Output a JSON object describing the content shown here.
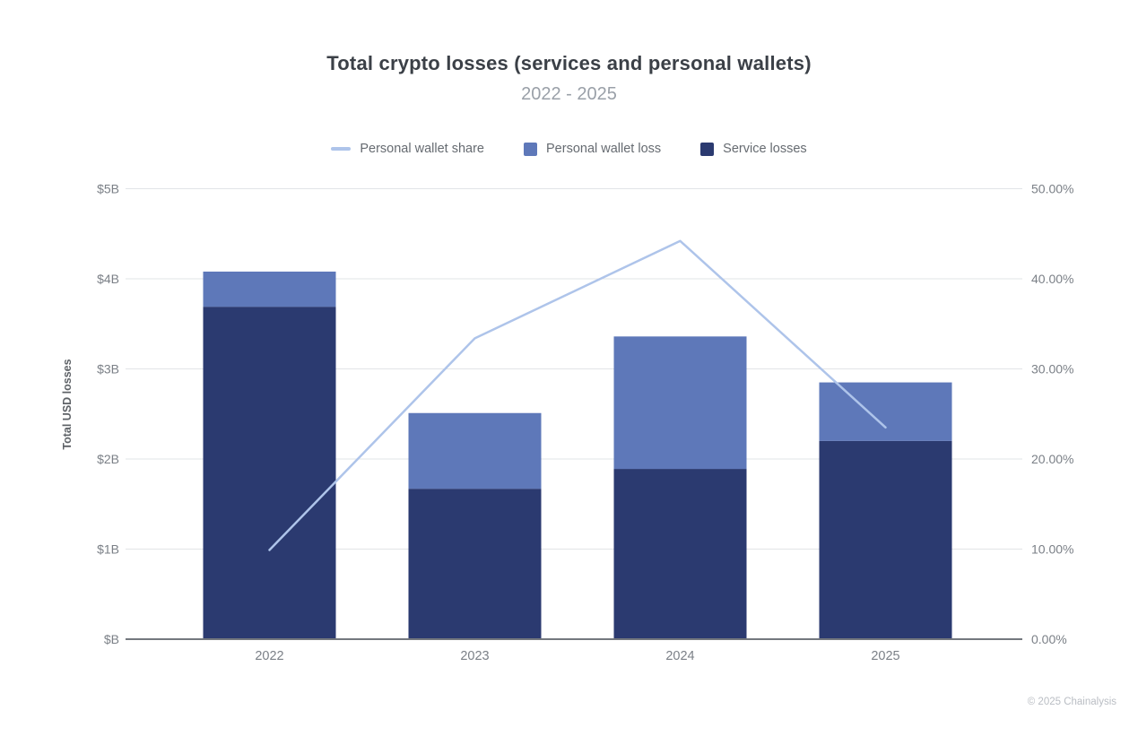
{
  "header": {
    "title": "Total crypto losses (services and personal wallets)",
    "subtitle": "2022 - 2025"
  },
  "legend": {
    "items": [
      {
        "label": "Personal wallet share",
        "marker": "line-swatch",
        "color": "#aec4ea"
      },
      {
        "label": "Personal wallet loss",
        "marker": "square-swatch",
        "color": "#5e78b9"
      },
      {
        "label": "Service losses",
        "marker": "square-swatch",
        "color": "#2b3a70"
      }
    ]
  },
  "footer": {
    "credit": "© 2025 Chainalysis"
  },
  "colors": {
    "service_bar": "#2b3a70",
    "personal_bar": "#5e78b9",
    "share_line": "#aec4ea",
    "gridline": "#e2e4e7",
    "baseline": "#74787e",
    "tick_label": "#7b8087",
    "axis_title": "#5d6166",
    "title_text": "#3b4047",
    "subtitle_text": "#9aa0a8",
    "footer_text": "#b9bdc3"
  },
  "chart_data": {
    "type": "bar",
    "subtype": "stacked-bars-with-line-overlay",
    "title": "Total crypto losses (services and personal wallets)",
    "subtitle": "2022 - 2025",
    "categories": [
      "2022",
      "2023",
      "2024",
      "2025"
    ],
    "series": [
      {
        "name": "Service losses",
        "type": "bar",
        "stack": "losses",
        "axis": "left",
        "color": "#2b3a70",
        "values": [
          3.69,
          1.67,
          1.89,
          2.2
        ]
      },
      {
        "name": "Personal wallet loss",
        "type": "bar",
        "stack": "losses",
        "axis": "left",
        "color": "#5e78b9",
        "values": [
          0.39,
          0.84,
          1.47,
          0.65
        ]
      },
      {
        "name": "Personal wallet share",
        "type": "line",
        "axis": "right",
        "color": "#aec4ea",
        "values": [
          9.9,
          33.4,
          44.2,
          23.5
        ]
      }
    ],
    "stack_totals_billions": [
      4.08,
      2.51,
      3.36,
      2.85
    ],
    "left_axis": {
      "label": "Total USD losses",
      "unit": "USD billions",
      "range": [
        0,
        5
      ],
      "ticks": [
        "$B",
        "$1B",
        "$2B",
        "$3B",
        "$4B",
        "$5B"
      ]
    },
    "right_axis": {
      "unit": "percent",
      "range": [
        0,
        50
      ],
      "ticks": [
        "0.00%",
        "10.00%",
        "20.00%",
        "30.00%",
        "40.00%",
        "50.00%"
      ]
    },
    "grid": true,
    "legend_position": "top-center"
  }
}
